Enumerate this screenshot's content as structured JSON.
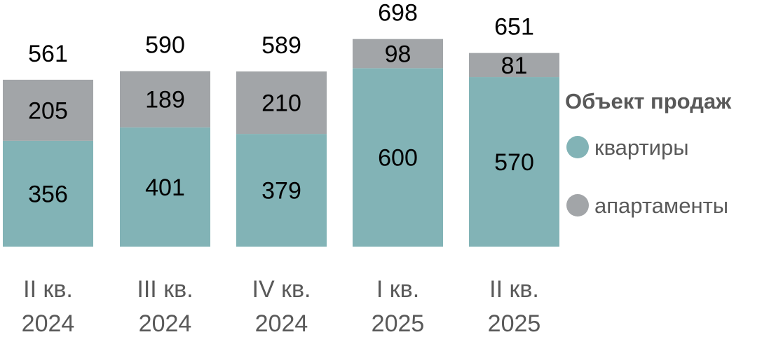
{
  "chart_data": {
    "type": "bar",
    "stacked": true,
    "categories": [
      [
        "II кв.",
        "2024"
      ],
      [
        "III кв.",
        "2024"
      ],
      [
        "IV кв.",
        "2024"
      ],
      [
        "I кв.",
        "2025"
      ],
      [
        "II кв.",
        "2025"
      ]
    ],
    "series": [
      {
        "name": "квартиры",
        "values": [
          356,
          401,
          379,
          600,
          570
        ],
        "color": "#82b3b6"
      },
      {
        "name": "апартаменты",
        "values": [
          205,
          189,
          210,
          98,
          81
        ],
        "color": "#a2a5a8"
      }
    ],
    "totals": [
      561,
      590,
      589,
      698,
      651
    ],
    "legend": {
      "title": "Объект продаж",
      "position": "right"
    },
    "title": "",
    "xlabel": "",
    "ylabel": "",
    "grid": false
  }
}
